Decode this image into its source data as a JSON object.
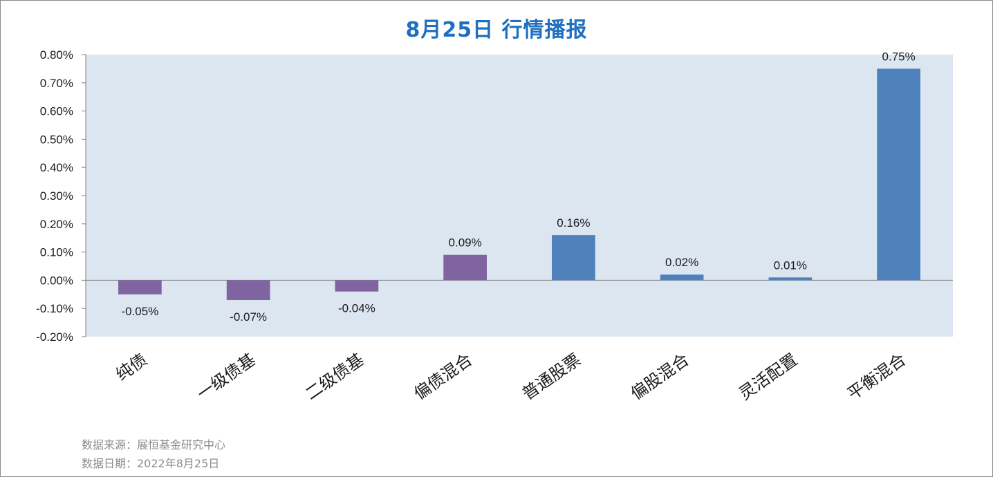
{
  "title": "8月25日  行情播报",
  "footer": {
    "source": "数据来源：展恒基金研究中心",
    "date": "数据日期：2022年8月25日"
  },
  "colors": {
    "plot_bg": "#dce6f1",
    "bond": "#8064a2",
    "equity": "#4f81bd",
    "title": "#1f6fbf"
  },
  "chart_data": {
    "type": "bar",
    "title": "8月25日  行情播报",
    "xlabel": "",
    "ylabel": "",
    "ylim": [
      -0.2,
      0.8
    ],
    "yticks": [
      0.8,
      0.7,
      0.6,
      0.5,
      0.4,
      0.3,
      0.2,
      0.1,
      0.0,
      -0.1,
      -0.2
    ],
    "ytick_labels": [
      "0.80%",
      "0.70%",
      "0.60%",
      "0.50%",
      "0.40%",
      "0.30%",
      "0.20%",
      "0.10%",
      "0.00%",
      "-0.10%",
      "-0.20%"
    ],
    "grid": false,
    "legend": "none",
    "categories": [
      "纯债",
      "一级债基",
      "二级债基",
      "偏债混合",
      "普通股票",
      "偏股混合",
      "灵活配置",
      "平衡混合"
    ],
    "values": [
      -0.05,
      -0.07,
      -0.04,
      0.09,
      0.16,
      0.02,
      0.01,
      0.75
    ],
    "value_labels": [
      "-0.05%",
      "-0.07%",
      "-0.04%",
      "0.09%",
      "0.16%",
      "0.02%",
      "0.01%",
      "0.75%"
    ],
    "bar_colors": [
      "#8064a2",
      "#8064a2",
      "#8064a2",
      "#8064a2",
      "#4f81bd",
      "#4f81bd",
      "#4f81bd",
      "#4f81bd"
    ]
  }
}
